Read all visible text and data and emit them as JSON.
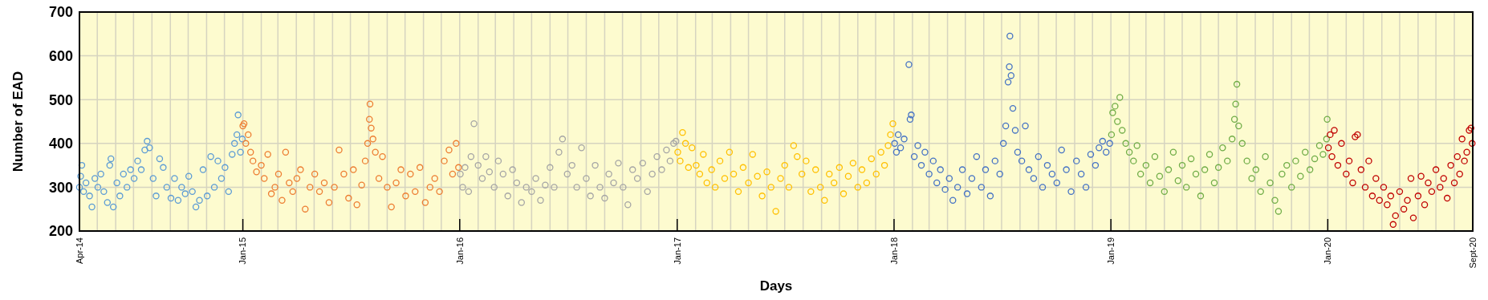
{
  "chart_data": {
    "type": "scatter",
    "xlabel": "Days",
    "ylabel": "Number of EAD",
    "marker": "circle",
    "grid": true,
    "ylim": [
      200,
      700
    ],
    "yticks": [
      200,
      300,
      400,
      500,
      600,
      700
    ],
    "xlim": [
      "2014-04-01",
      "2020-09-01"
    ],
    "xticks": [
      {
        "value": "2014-04",
        "label": "Apr-14"
      },
      {
        "value": "2014-05",
        "label": null
      },
      {
        "value": "2014-06",
        "label": null
      },
      {
        "value": "2014-07",
        "label": null
      },
      {
        "value": "2014-08",
        "label": null
      },
      {
        "value": "2014-09",
        "label": null
      },
      {
        "value": "2014-10",
        "label": null
      },
      {
        "value": "2014-11",
        "label": null
      },
      {
        "value": "2014-12",
        "label": null
      },
      {
        "value": "2015-01",
        "label": "Jan-15"
      },
      {
        "value": "2015-02",
        "label": null
      },
      {
        "value": "2015-03",
        "label": null
      },
      {
        "value": "2015-04",
        "label": null
      },
      {
        "value": "2015-05",
        "label": null
      },
      {
        "value": "2015-06",
        "label": null
      },
      {
        "value": "2015-07",
        "label": null
      },
      {
        "value": "2015-08",
        "label": null
      },
      {
        "value": "2015-09",
        "label": null
      },
      {
        "value": "2015-10",
        "label": null
      },
      {
        "value": "2015-11",
        "label": null
      },
      {
        "value": "2015-12",
        "label": null
      },
      {
        "value": "2016-01",
        "label": "Jan-16"
      },
      {
        "value": "2016-02",
        "label": null
      },
      {
        "value": "2016-03",
        "label": null
      },
      {
        "value": "2016-04",
        "label": null
      },
      {
        "value": "2016-05",
        "label": null
      },
      {
        "value": "2016-06",
        "label": null
      },
      {
        "value": "2016-07",
        "label": null
      },
      {
        "value": "2016-08",
        "label": null
      },
      {
        "value": "2016-09",
        "label": null
      },
      {
        "value": "2016-10",
        "label": null
      },
      {
        "value": "2016-11",
        "label": null
      },
      {
        "value": "2016-12",
        "label": null
      },
      {
        "value": "2017-01",
        "label": "Jan-17"
      },
      {
        "value": "2017-02",
        "label": null
      },
      {
        "value": "2017-03",
        "label": null
      },
      {
        "value": "2017-04",
        "label": null
      },
      {
        "value": "2017-05",
        "label": null
      },
      {
        "value": "2017-06",
        "label": null
      },
      {
        "value": "2017-07",
        "label": null
      },
      {
        "value": "2017-08",
        "label": null
      },
      {
        "value": "2017-09",
        "label": null
      },
      {
        "value": "2017-10",
        "label": null
      },
      {
        "value": "2017-11",
        "label": null
      },
      {
        "value": "2017-12",
        "label": null
      },
      {
        "value": "2018-01",
        "label": "Jan-18"
      },
      {
        "value": "2018-02",
        "label": null
      },
      {
        "value": "2018-03",
        "label": null
      },
      {
        "value": "2018-04",
        "label": null
      },
      {
        "value": "2018-05",
        "label": null
      },
      {
        "value": "2018-06",
        "label": null
      },
      {
        "value": "2018-07",
        "label": null
      },
      {
        "value": "2018-08",
        "label": null
      },
      {
        "value": "2018-09",
        "label": null
      },
      {
        "value": "2018-10",
        "label": null
      },
      {
        "value": "2018-11",
        "label": null
      },
      {
        "value": "2018-12",
        "label": null
      },
      {
        "value": "2019-01",
        "label": "Jan-19"
      },
      {
        "value": "2019-02",
        "label": null
      },
      {
        "value": "2019-03",
        "label": null
      },
      {
        "value": "2019-04",
        "label": null
      },
      {
        "value": "2019-05",
        "label": null
      },
      {
        "value": "2019-06",
        "label": null
      },
      {
        "value": "2019-07",
        "label": null
      },
      {
        "value": "2019-08",
        "label": null
      },
      {
        "value": "2019-09",
        "label": null
      },
      {
        "value": "2019-10",
        "label": null
      },
      {
        "value": "2019-11",
        "label": null
      },
      {
        "value": "2019-12",
        "label": null
      },
      {
        "value": "2020-01",
        "label": "Jan-20"
      },
      {
        "value": "2020-02",
        "label": null
      },
      {
        "value": "2020-03",
        "label": null
      },
      {
        "value": "2020-04",
        "label": null
      },
      {
        "value": "2020-05",
        "label": null
      },
      {
        "value": "2020-06",
        "label": null
      },
      {
        "value": "2020-07",
        "label": null
      },
      {
        "value": "2020-08",
        "label": null
      },
      {
        "value": "2020-09",
        "label": "Sept-20"
      }
    ],
    "series": [
      {
        "color": "#5b9bd5",
        "x": [
          "2014-04-01",
          "2014-04-03",
          "2014-04-05",
          "2014-04-08",
          "2014-04-12",
          "2014-04-18",
          "2014-04-22",
          "2014-04-27",
          "2014-05-02",
          "2014-05-07",
          "2014-05-12",
          "2014-05-18",
          "2014-05-22",
          "2014-05-24",
          "2014-05-28",
          "2014-06-03",
          "2014-06-08",
          "2014-06-14",
          "2014-06-20",
          "2014-06-26",
          "2014-07-02",
          "2014-07-08",
          "2014-07-14",
          "2014-07-20",
          "2014-07-24",
          "2014-07-28",
          "2014-08-03",
          "2014-08-08",
          "2014-08-14",
          "2014-08-20",
          "2014-08-26",
          "2014-09-02",
          "2014-09-08",
          "2014-09-14",
          "2014-09-20",
          "2014-09-26",
          "2014-10-02",
          "2014-10-08",
          "2014-10-14",
          "2014-10-20",
          "2014-10-26",
          "2014-11-02",
          "2014-11-08",
          "2014-11-14",
          "2014-11-20",
          "2014-11-26",
          "2014-12-02",
          "2014-12-08",
          "2014-12-14",
          "2014-12-18",
          "2014-12-22",
          "2014-12-24",
          "2014-12-28",
          "2014-12-31"
        ],
        "values": [
          300,
          325,
          350,
          290,
          310,
          280,
          255,
          320,
          300,
          330,
          290,
          265,
          350,
          365,
          255,
          310,
          280,
          330,
          300,
          340,
          320,
          360,
          340,
          385,
          405,
          390,
          320,
          280,
          365,
          345,
          300,
          275,
          320,
          270,
          300,
          285,
          325,
          290,
          255,
          270,
          340,
          280,
          370,
          300,
          360,
          320,
          345,
          290,
          375,
          400,
          420,
          465,
          380,
          410
        ]
      },
      {
        "color": "#ed7d31",
        "x": [
          "2015-01-01",
          "2015-01-03",
          "2015-01-06",
          "2015-01-10",
          "2015-01-14",
          "2015-01-18",
          "2015-01-24",
          "2015-02-01",
          "2015-02-06",
          "2015-02-12",
          "2015-02-18",
          "2015-02-24",
          "2015-03-02",
          "2015-03-08",
          "2015-03-14",
          "2015-03-20",
          "2015-03-26",
          "2015-04-02",
          "2015-04-08",
          "2015-04-16",
          "2015-04-24",
          "2015-05-02",
          "2015-05-10",
          "2015-05-18",
          "2015-05-26",
          "2015-06-04",
          "2015-06-12",
          "2015-06-20",
          "2015-06-28",
          "2015-07-06",
          "2015-07-12",
          "2015-07-20",
          "2015-07-26",
          "2015-07-30",
          "2015-08-02",
          "2015-08-03",
          "2015-08-05",
          "2015-08-08",
          "2015-08-12",
          "2015-08-18",
          "2015-08-24",
          "2015-09-01",
          "2015-09-08",
          "2015-09-16",
          "2015-09-24",
          "2015-10-02",
          "2015-10-10",
          "2015-10-18",
          "2015-10-26",
          "2015-11-04",
          "2015-11-12",
          "2015-11-20",
          "2015-11-28",
          "2015-12-06",
          "2015-12-14",
          "2015-12-20",
          "2015-12-26",
          "2015-12-30"
        ],
        "values": [
          440,
          445,
          400,
          420,
          380,
          360,
          335,
          350,
          320,
          375,
          285,
          300,
          330,
          270,
          380,
          310,
          290,
          320,
          340,
          250,
          300,
          330,
          290,
          310,
          265,
          300,
          385,
          330,
          275,
          340,
          260,
          305,
          360,
          400,
          455,
          490,
          435,
          410,
          380,
          320,
          370,
          300,
          255,
          310,
          340,
          280,
          330,
          290,
          345,
          265,
          300,
          320,
          290,
          360,
          385,
          330,
          400,
          345
        ]
      },
      {
        "color": "#a5a5a5",
        "x": [
          "2016-01-02",
          "2016-01-06",
          "2016-01-10",
          "2016-01-16",
          "2016-01-20",
          "2016-01-25",
          "2016-02-01",
          "2016-02-08",
          "2016-02-14",
          "2016-02-20",
          "2016-02-28",
          "2016-03-06",
          "2016-03-14",
          "2016-03-22",
          "2016-03-30",
          "2016-04-06",
          "2016-04-14",
          "2016-04-22",
          "2016-05-01",
          "2016-05-08",
          "2016-05-16",
          "2016-05-24",
          "2016-06-01",
          "2016-06-08",
          "2016-06-16",
          "2016-06-22",
          "2016-06-30",
          "2016-07-08",
          "2016-07-16",
          "2016-07-24",
          "2016-08-01",
          "2016-08-08",
          "2016-08-16",
          "2016-08-24",
          "2016-09-01",
          "2016-09-08",
          "2016-09-16",
          "2016-09-24",
          "2016-10-02",
          "2016-10-10",
          "2016-10-18",
          "2016-10-26",
          "2016-11-04",
          "2016-11-12",
          "2016-11-20",
          "2016-11-28",
          "2016-12-06",
          "2016-12-14",
          "2016-12-20",
          "2016-12-26",
          "2016-12-30"
        ],
        "values": [
          330,
          300,
          345,
          290,
          370,
          445,
          350,
          320,
          370,
          335,
          300,
          360,
          330,
          280,
          340,
          310,
          265,
          300,
          290,
          320,
          270,
          305,
          345,
          300,
          380,
          410,
          330,
          350,
          300,
          390,
          320,
          280,
          350,
          300,
          275,
          330,
          310,
          355,
          300,
          260,
          340,
          320,
          355,
          290,
          330,
          370,
          340,
          385,
          360,
          400,
          405
        ]
      },
      {
        "color": "#ffc000",
        "x": [
          "2017-01-02",
          "2017-01-06",
          "2017-01-10",
          "2017-01-15",
          "2017-01-20",
          "2017-01-26",
          "2017-02-02",
          "2017-02-08",
          "2017-02-14",
          "2017-02-20",
          "2017-02-28",
          "2017-03-06",
          "2017-03-14",
          "2017-03-22",
          "2017-03-30",
          "2017-04-06",
          "2017-04-14",
          "2017-04-22",
          "2017-05-01",
          "2017-05-08",
          "2017-05-16",
          "2017-05-24",
          "2017-06-01",
          "2017-06-08",
          "2017-06-16",
          "2017-06-24",
          "2017-07-01",
          "2017-07-08",
          "2017-07-16",
          "2017-07-22",
          "2017-07-30",
          "2017-08-06",
          "2017-08-14",
          "2017-08-22",
          "2017-08-30",
          "2017-09-06",
          "2017-09-14",
          "2017-09-22",
          "2017-10-01",
          "2017-10-08",
          "2017-10-16",
          "2017-10-24",
          "2017-11-01",
          "2017-11-08",
          "2017-11-16",
          "2017-11-24",
          "2017-12-02",
          "2017-12-10",
          "2017-12-16",
          "2017-12-22",
          "2017-12-26",
          "2017-12-30"
        ],
        "values": [
          380,
          360,
          425,
          400,
          345,
          390,
          350,
          330,
          375,
          310,
          340,
          300,
          360,
          320,
          380,
          330,
          290,
          345,
          310,
          375,
          325,
          280,
          335,
          300,
          245,
          320,
          350,
          300,
          395,
          370,
          330,
          360,
          290,
          340,
          300,
          270,
          330,
          310,
          345,
          285,
          325,
          355,
          300,
          340,
          310,
          365,
          330,
          380,
          350,
          395,
          420,
          445
        ]
      },
      {
        "color": "#4472c4",
        "x": [
          "2018-01-02",
          "2018-01-05",
          "2018-01-08",
          "2018-01-12",
          "2018-01-18",
          "2018-01-26",
          "2018-01-28",
          "2018-01-30",
          "2018-02-04",
          "2018-02-10",
          "2018-02-16",
          "2018-02-22",
          "2018-03-01",
          "2018-03-08",
          "2018-03-14",
          "2018-03-20",
          "2018-03-28",
          "2018-04-04",
          "2018-04-10",
          "2018-04-18",
          "2018-04-26",
          "2018-05-04",
          "2018-05-12",
          "2018-05-20",
          "2018-05-28",
          "2018-06-04",
          "2018-06-12",
          "2018-06-20",
          "2018-06-28",
          "2018-07-04",
          "2018-07-08",
          "2018-07-12",
          "2018-07-14",
          "2018-07-15",
          "2018-07-17",
          "2018-07-20",
          "2018-07-24",
          "2018-07-28",
          "2018-08-04",
          "2018-08-10",
          "2018-08-16",
          "2018-08-24",
          "2018-09-01",
          "2018-09-08",
          "2018-09-16",
          "2018-09-24",
          "2018-10-02",
          "2018-10-10",
          "2018-10-18",
          "2018-10-26",
          "2018-11-04",
          "2018-11-12",
          "2018-11-20",
          "2018-11-28",
          "2018-12-06",
          "2018-12-12",
          "2018-12-18",
          "2018-12-24",
          "2018-12-30"
        ],
        "values": [
          400,
          380,
          420,
          390,
          410,
          580,
          455,
          465,
          370,
          395,
          350,
          380,
          330,
          360,
          310,
          340,
          295,
          320,
          270,
          300,
          340,
          285,
          320,
          370,
          300,
          340,
          280,
          360,
          330,
          400,
          440,
          540,
          575,
          645,
          555,
          480,
          430,
          380,
          360,
          440,
          340,
          320,
          370,
          300,
          350,
          330,
          310,
          385,
          340,
          290,
          360,
          330,
          300,
          375,
          350,
          390,
          405,
          380,
          400
        ]
      },
      {
        "color": "#70ad47",
        "x": [
          "2019-01-02",
          "2019-01-04",
          "2019-01-08",
          "2019-01-12",
          "2019-01-16",
          "2019-01-20",
          "2019-01-26",
          "2019-02-01",
          "2019-02-08",
          "2019-02-14",
          "2019-02-20",
          "2019-03-01",
          "2019-03-08",
          "2019-03-16",
          "2019-03-24",
          "2019-04-01",
          "2019-04-08",
          "2019-04-16",
          "2019-04-24",
          "2019-05-01",
          "2019-05-08",
          "2019-05-16",
          "2019-05-24",
          "2019-06-01",
          "2019-06-08",
          "2019-06-16",
          "2019-06-24",
          "2019-07-01",
          "2019-07-08",
          "2019-07-16",
          "2019-07-24",
          "2019-07-28",
          "2019-07-30",
          "2019-08-01",
          "2019-08-04",
          "2019-08-10",
          "2019-08-18",
          "2019-08-26",
          "2019-09-02",
          "2019-09-10",
          "2019-09-18",
          "2019-09-26",
          "2019-10-04",
          "2019-10-10",
          "2019-10-16",
          "2019-10-24",
          "2019-11-01",
          "2019-11-08",
          "2019-11-16",
          "2019-11-24",
          "2019-12-02",
          "2019-12-10",
          "2019-12-18",
          "2019-12-24",
          "2019-12-30",
          "2019-12-31"
        ],
        "values": [
          420,
          470,
          485,
          450,
          505,
          430,
          400,
          380,
          360,
          395,
          330,
          350,
          310,
          370,
          325,
          290,
          340,
          380,
          315,
          350,
          300,
          365,
          330,
          280,
          340,
          375,
          310,
          345,
          390,
          360,
          410,
          455,
          490,
          535,
          440,
          400,
          360,
          320,
          340,
          290,
          370,
          310,
          270,
          245,
          330,
          350,
          300,
          360,
          325,
          380,
          340,
          365,
          395,
          375,
          410,
          455
        ]
      },
      {
        "color": "#c00000",
        "x": [
          "2020-01-02",
          "2020-01-05",
          "2020-01-08",
          "2020-01-12",
          "2020-01-18",
          "2020-01-24",
          "2020-02-01",
          "2020-02-06",
          "2020-02-12",
          "2020-02-16",
          "2020-02-20",
          "2020-02-26",
          "2020-03-04",
          "2020-03-10",
          "2020-03-16",
          "2020-03-22",
          "2020-03-28",
          "2020-04-04",
          "2020-04-10",
          "2020-04-16",
          "2020-04-20",
          "2020-04-24",
          "2020-05-01",
          "2020-05-08",
          "2020-05-14",
          "2020-05-20",
          "2020-05-24",
          "2020-06-01",
          "2020-06-06",
          "2020-06-12",
          "2020-06-18",
          "2020-06-24",
          "2020-07-01",
          "2020-07-08",
          "2020-07-14",
          "2020-07-20",
          "2020-07-26",
          "2020-08-01",
          "2020-08-06",
          "2020-08-10",
          "2020-08-14",
          "2020-08-18",
          "2020-08-22",
          "2020-08-26",
          "2020-08-29",
          "2020-08-31"
        ],
        "values": [
          390,
          420,
          370,
          430,
          350,
          400,
          330,
          360,
          310,
          415,
          420,
          340,
          300,
          360,
          280,
          320,
          270,
          300,
          260,
          280,
          215,
          235,
          290,
          250,
          270,
          320,
          230,
          280,
          325,
          260,
          310,
          290,
          340,
          300,
          320,
          275,
          350,
          310,
          370,
          330,
          410,
          360,
          380,
          430,
          435,
          400
        ]
      }
    ]
  }
}
